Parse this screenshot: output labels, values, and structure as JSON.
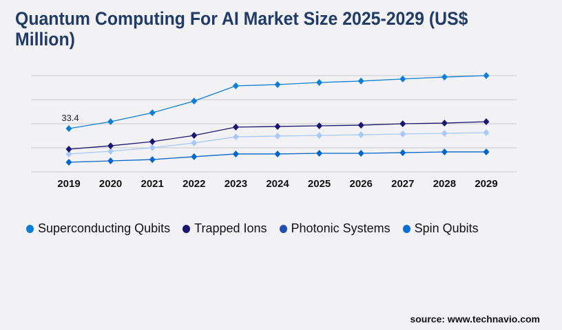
{
  "title": "Quantum Computing For AI Market Size 2025-2029 (US$ Million)",
  "source": "source: www.technavio.com",
  "chart_data": {
    "type": "line",
    "title": "Quantum Computing For AI Market Size 2025-2029 (US$ Million)",
    "x": [
      "2019",
      "2020",
      "2021",
      "2022",
      "2023",
      "2024",
      "2025",
      "2026",
      "2027",
      "2028",
      "2029"
    ],
    "ylim": [
      0,
      74.2
    ],
    "grid": true,
    "legend_position": "bottom",
    "annotations": [
      {
        "series": 0,
        "x": "2019",
        "text": "33.4"
      }
    ],
    "series": [
      {
        "name": "Superconducting Qubits",
        "color": "#0a7fd4",
        "legend_color": "#0a7fd4",
        "values": [
          33.4,
          38.7,
          45.6,
          54.6,
          66.3,
          67.3,
          68.9,
          70.0,
          71.6,
          73.1,
          74.2
        ]
      },
      {
        "name": "Trapped Ions",
        "color": "#1a1670",
        "legend_color": "#1a1670",
        "values": [
          17.5,
          20.1,
          23.3,
          28.1,
          34.5,
          35.0,
          35.5,
          36.0,
          37.1,
          37.6,
          38.7
        ]
      },
      {
        "name": "Photonic Systems",
        "color": "#a8c8f8",
        "legend_color": "#1f4fb0",
        "values": [
          13.8,
          15.9,
          18.6,
          22.3,
          27.0,
          27.6,
          28.1,
          28.6,
          29.2,
          29.7,
          30.2
        ]
      },
      {
        "name": "Spin Qubits",
        "color": "#0066cc",
        "legend_color": "#0a6fd4",
        "values": [
          7.4,
          8.5,
          9.5,
          11.7,
          13.8,
          13.8,
          14.3,
          14.3,
          14.8,
          15.4,
          15.4
        ]
      }
    ]
  }
}
